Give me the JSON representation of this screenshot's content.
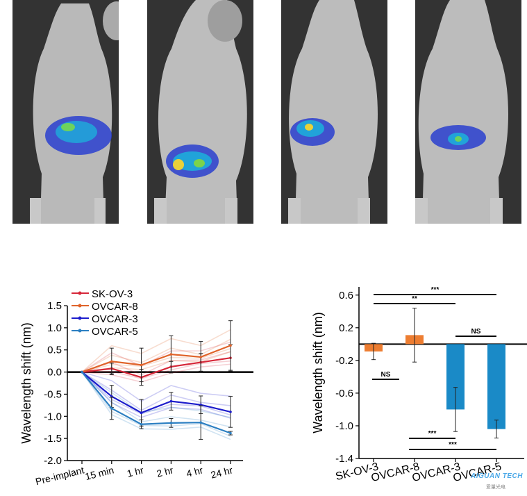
{
  "panels": [
    {
      "name": "mouse-panel-1"
    },
    {
      "name": "mouse-panel-2"
    },
    {
      "name": "mouse-panel-3"
    },
    {
      "name": "mouse-panel-4"
    }
  ],
  "colors": {
    "sk_ov_3": "#d62739",
    "ovcar_8": "#e0632a",
    "ovcar_3": "#1c1ccc",
    "ovcar_5": "#2b7fc2",
    "bar_orange": "#ed7d31",
    "bar_blue": "#1a8ac7"
  },
  "chart_data": [
    {
      "type": "line",
      "ylabel": "Wavelength shift (nm)",
      "xlabel": "",
      "categories": [
        "Pre-implant",
        "15 min",
        "1 hr",
        "2 hr",
        "4 hr",
        "24 hr"
      ],
      "ylim": [
        -2.0,
        1.5
      ],
      "yticks": [
        "1.5",
        "1.0",
        "0.5",
        "0.0",
        "-0.5",
        "-1.0",
        "-1.5",
        "-2.0"
      ],
      "legend_position": "top-left",
      "series": [
        {
          "name": "SK-OV-3",
          "color": "#d62739",
          "values": [
            0,
            0.08,
            -0.12,
            0.12,
            0.22,
            0.32
          ],
          "err": [
            0,
            0.12,
            0.18,
            0.12,
            0.2,
            0.3
          ]
        },
        {
          "name": "OVCAR-8",
          "color": "#e0632a",
          "values": [
            0,
            0.24,
            0.16,
            0.4,
            0.34,
            0.6
          ],
          "err": [
            0,
            0.3,
            0.38,
            0.42,
            0.35,
            0.56
          ]
        },
        {
          "name": "OVCAR-3",
          "color": "#1c1ccc",
          "values": [
            0,
            -0.55,
            -0.92,
            -0.66,
            -0.74,
            -0.9
          ],
          "err": [
            0,
            0.25,
            0.3,
            0.2,
            0.2,
            0.35
          ]
        },
        {
          "name": "OVCAR-5",
          "color": "#2b7fc2",
          "values": [
            0,
            -0.82,
            -1.18,
            -1.15,
            -1.14,
            -1.38
          ],
          "err": [
            0,
            0.25,
            0.1,
            0.1,
            0.38,
            0.04
          ]
        }
      ]
    },
    {
      "type": "bar",
      "ylabel": "Wavelength shift (nm)",
      "xlabel": "",
      "categories": [
        "SK-OV-3",
        "OVCAR-8",
        "OVCAR-3",
        "OVCAR-5"
      ],
      "values": [
        -0.09,
        0.11,
        -0.8,
        -1.04
      ],
      "errors": [
        0.1,
        0.33,
        0.27,
        0.11
      ],
      "ylim": [
        -1.4,
        0.7
      ],
      "yticks": [
        "0.6",
        "0.2",
        "-0.2",
        "-0.6",
        "-1.0",
        "-1.4"
      ],
      "significance": [
        "***",
        "**",
        "NS",
        "NS",
        "***",
        "***"
      ]
    }
  ],
  "watermark": {
    "text": "AIGUAN TECH",
    "subtext": "爱量光电"
  }
}
